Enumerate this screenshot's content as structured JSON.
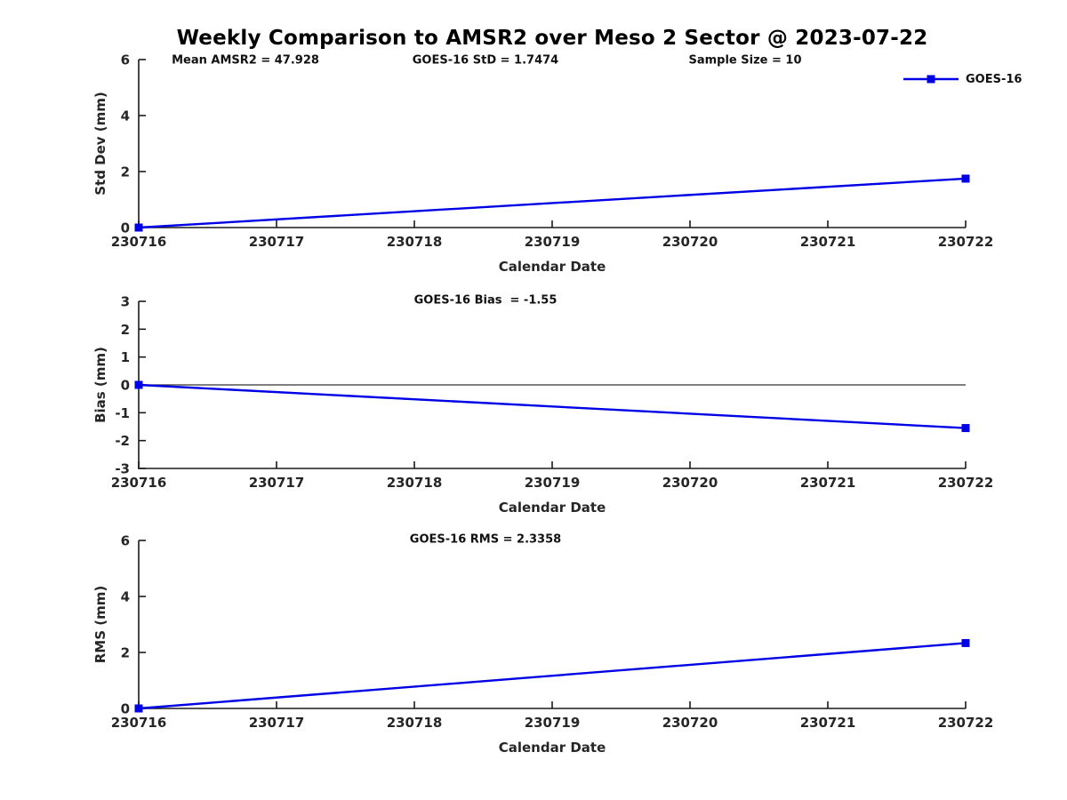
{
  "title": "Weekly Comparison to AMSR2 over Meso 2 Sector @ 2023-07-22",
  "colors": {
    "accent": "#0000E6",
    "axis_line": "#1a1a1a",
    "zero_line": "#333333",
    "text": "#111111"
  },
  "legend": {
    "label": "GOES-16",
    "position": "top-right"
  },
  "chart_data": [
    {
      "id": "stddev",
      "type": "line",
      "title": "",
      "xlabel": "Calendar Date",
      "ylabel": "Std Dev (mm)",
      "xlim": [
        230716,
        230722
      ],
      "ylim": [
        0,
        6
      ],
      "xticks": [
        "230716",
        "230717",
        "230718",
        "230719",
        "230720",
        "230721",
        "230722"
      ],
      "yticks": [
        0,
        2,
        4,
        6
      ],
      "grid": false,
      "zero_line": false,
      "annotations": [
        "Mean AMSR2 = 47.928",
        "GOES-16 StD = 1.7474",
        "Sample Size = 10"
      ],
      "series": [
        {
          "name": "GOES-16",
          "marker": "square",
          "x": [
            230716,
            230722
          ],
          "values": [
            0,
            1.7474
          ]
        }
      ]
    },
    {
      "id": "bias",
      "type": "line",
      "title": "",
      "xlabel": "Calendar Date",
      "ylabel": "Bias (mm)",
      "xlim": [
        230716,
        230722
      ],
      "ylim": [
        -3,
        3
      ],
      "xticks": [
        "230716",
        "230717",
        "230718",
        "230719",
        "230720",
        "230721",
        "230722"
      ],
      "yticks": [
        -3,
        -2,
        -1,
        0,
        1,
        2,
        3
      ],
      "grid": false,
      "zero_line": true,
      "annotations": [
        "GOES-16 Bias  = -1.55"
      ],
      "series": [
        {
          "name": "GOES-16",
          "marker": "square",
          "x": [
            230716,
            230722
          ],
          "values": [
            0,
            -1.55
          ]
        }
      ]
    },
    {
      "id": "rms",
      "type": "line",
      "title": "",
      "xlabel": "Calendar Date",
      "ylabel": "RMS (mm)",
      "xlim": [
        230716,
        230722
      ],
      "ylim": [
        0,
        6
      ],
      "xticks": [
        "230716",
        "230717",
        "230718",
        "230719",
        "230720",
        "230721",
        "230722"
      ],
      "yticks": [
        0,
        2,
        4,
        6
      ],
      "grid": false,
      "zero_line": false,
      "annotations": [
        "GOES-16 RMS = 2.3358"
      ],
      "series": [
        {
          "name": "GOES-16",
          "marker": "square",
          "x": [
            230716,
            230722
          ],
          "values": [
            0,
            2.3358
          ]
        }
      ]
    }
  ]
}
